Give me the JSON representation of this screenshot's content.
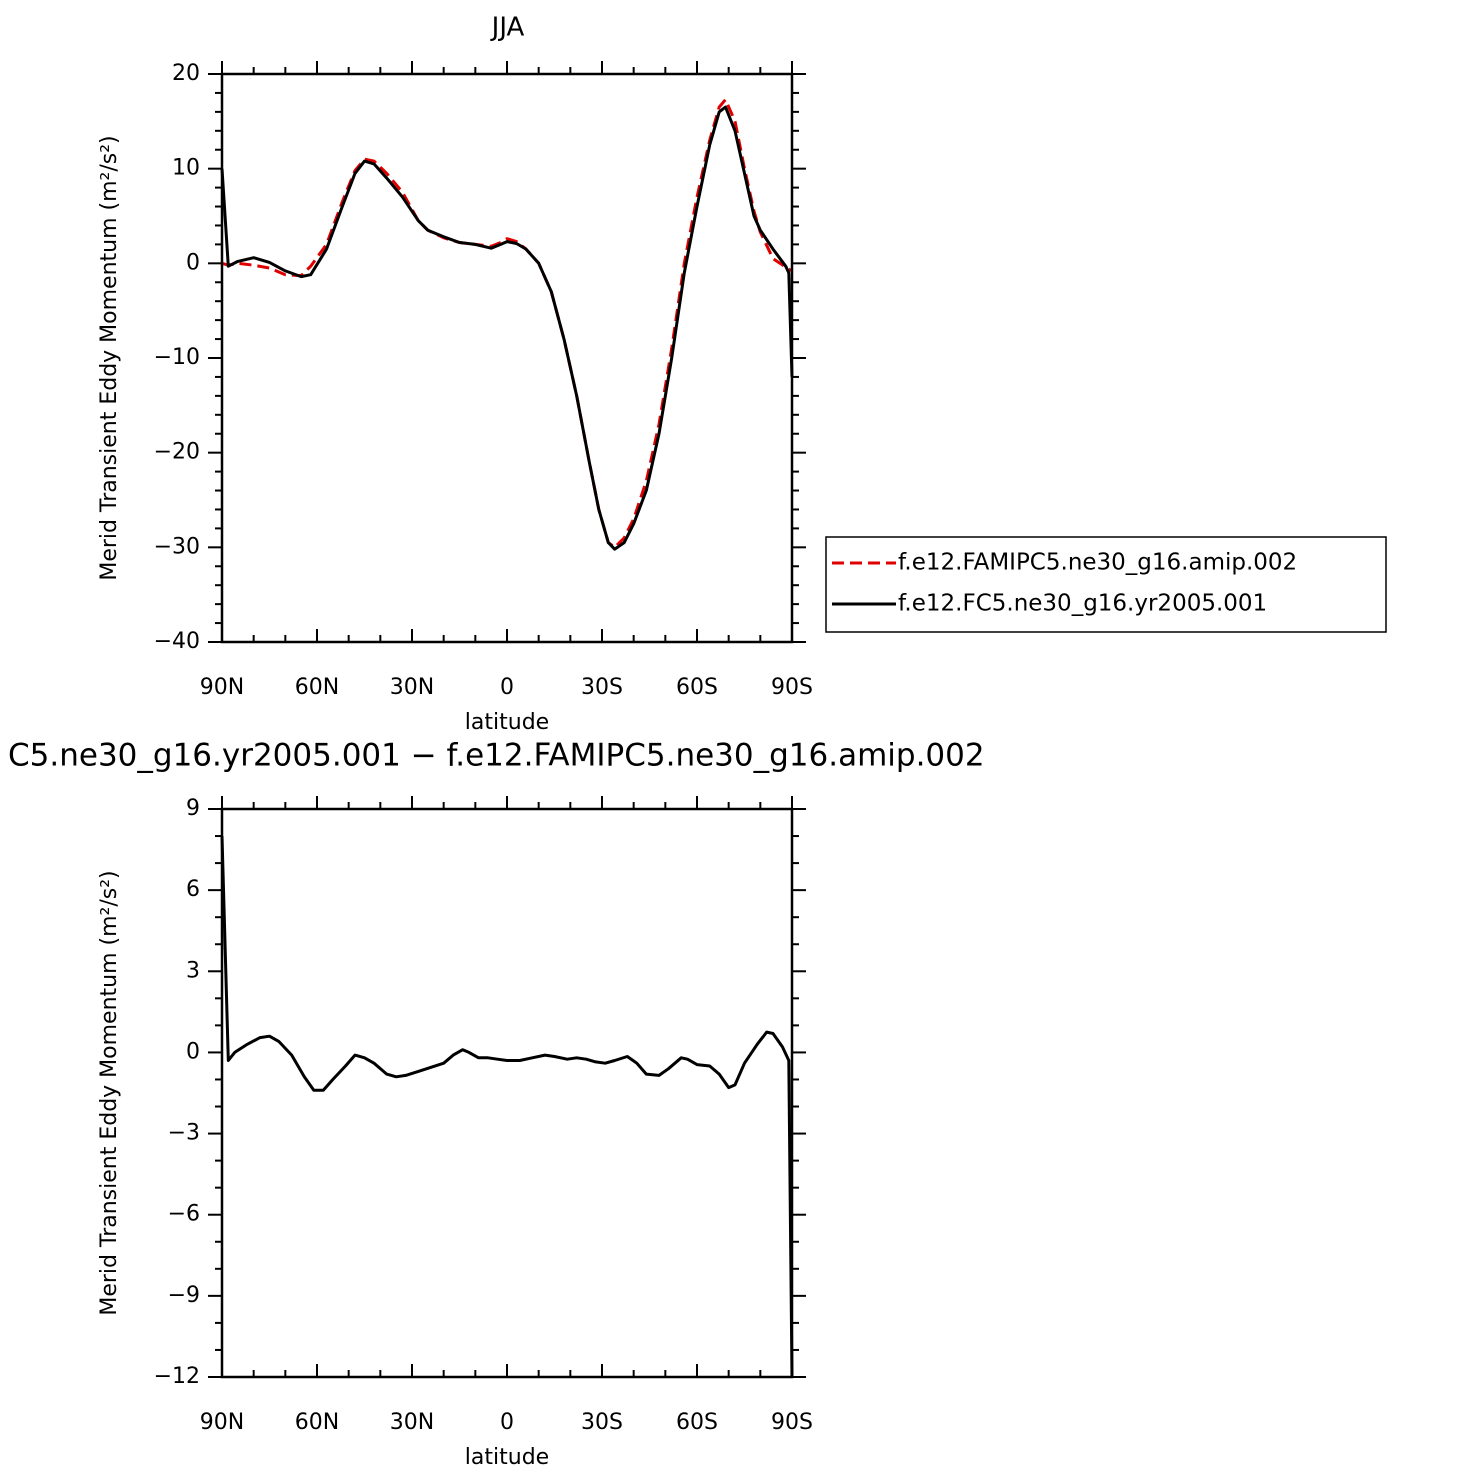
{
  "chart_data": [
    {
      "type": "line",
      "title": "JJA",
      "xlabel": "latitude",
      "ylabel": "Merid Transient Eddy Momentum (m²/s²)",
      "xlim": [
        90,
        -90
      ],
      "xticks": [
        {
          "value": 90,
          "label": "90N"
        },
        {
          "value": 60,
          "label": "60N"
        },
        {
          "value": 30,
          "label": "30N"
        },
        0,
        {
          "value": -30,
          "label": "30S"
        },
        {
          "value": -60,
          "label": "60S"
        },
        {
          "value": -90,
          "label": "90S"
        }
      ],
      "ylim": [
        -40,
        20
      ],
      "yticks": [
        {
          "value": -40,
          "label": "−40"
        },
        {
          "value": -30,
          "label": "−30"
        },
        {
          "value": -20,
          "label": "−20"
        },
        {
          "value": -10,
          "label": "−10"
        },
        0,
        10,
        20
      ],
      "legend": "right",
      "x": [
        90,
        88,
        85,
        80,
        75,
        70,
        65,
        62,
        57,
        52,
        48,
        45,
        42,
        38,
        33,
        28,
        25,
        20,
        15,
        10,
        5,
        2,
        0,
        -3,
        -6,
        -10,
        -14,
        -18,
        -22,
        -26,
        -29,
        -32,
        -34,
        -37,
        -40,
        -44,
        -48,
        -52,
        -56,
        -60,
        -64,
        -67,
        -69,
        -72,
        -75,
        -78,
        -80,
        -84,
        -88,
        -89,
        -90
      ],
      "series": [
        {
          "name": "f.e12.FAMIPC5.ne30_g16.amip.002",
          "color": "#e00000",
          "dash": true,
          "values": [
            0,
            -0.2,
            0,
            -0.2,
            -0.5,
            -1.2,
            -1.3,
            -0.3,
            2,
            6.5,
            9.8,
            11,
            10.8,
            9.5,
            7.5,
            4.5,
            3.5,
            2.7,
            2.2,
            2,
            1.8,
            2.2,
            2.6,
            2.3,
            1.5,
            0,
            -3,
            -8,
            -14,
            -21,
            -26,
            -29.5,
            -30,
            -29,
            -27,
            -23,
            -17,
            -9,
            0,
            7,
            13,
            16.5,
            17.3,
            15,
            10,
            5.5,
            3.3,
            0.5,
            -0.4,
            -0.6,
            -0.8
          ]
        },
        {
          "name": "f.e12.FC5.ne30_g16.yr2005.001",
          "color": "#000000",
          "dash": false,
          "values": [
            10,
            -0.3,
            0.2,
            0.6,
            0.1,
            -0.8,
            -1.4,
            -1.2,
            1.5,
            6,
            9.5,
            10.8,
            10.5,
            9,
            7,
            4.5,
            3.5,
            2.8,
            2.2,
            2,
            1.6,
            2,
            2.3,
            2.1,
            1.5,
            0,
            -3,
            -8,
            -14,
            -21,
            -26,
            -29.5,
            -30.2,
            -29.5,
            -27.5,
            -24,
            -18,
            -10,
            -1,
            6,
            12.5,
            16,
            16.5,
            14,
            9.5,
            5,
            3.5,
            1.5,
            -0.3,
            -1,
            -12
          ]
        }
      ]
    },
    {
      "type": "line",
      "title": "C5.ne30_g16.yr2005.001 − f.e12.FAMIPC5.ne30_g16.amip.002",
      "xlabel": "latitude",
      "ylabel": "Merid Transient Eddy Momentum (m²/s²)",
      "xlim": [
        90,
        -90
      ],
      "xticks": [
        {
          "value": 90,
          "label": "90N"
        },
        {
          "value": 60,
          "label": "60N"
        },
        {
          "value": 30,
          "label": "30N"
        },
        0,
        {
          "value": -30,
          "label": "30S"
        },
        {
          "value": -60,
          "label": "60S"
        },
        {
          "value": -90,
          "label": "90S"
        }
      ],
      "ylim": [
        -12,
        9
      ],
      "yticks": [
        {
          "value": -12,
          "label": "−12"
        },
        {
          "value": -9,
          "label": "−9"
        },
        {
          "value": -6,
          "label": "−6"
        },
        {
          "value": -3,
          "label": "−3"
        },
        0,
        3,
        6,
        9
      ],
      "x": [
        90,
        88,
        86,
        82,
        78,
        75,
        72,
        68,
        64,
        61,
        58,
        55,
        51,
        48,
        45,
        42,
        38,
        35,
        32,
        28,
        24,
        20,
        17,
        14,
        12,
        9,
        6,
        3,
        0,
        -4,
        -8,
        -12,
        -15,
        -19,
        -22,
        -25,
        -28,
        -31,
        -34,
        -38,
        -41,
        -44,
        -48,
        -51,
        -55,
        -57,
        -60,
        -64,
        -67,
        -70,
        -72,
        -75,
        -79,
        -82,
        -84,
        -87,
        -89,
        -90
      ],
      "series": [
        {
          "color": "#000000",
          "dash": false,
          "values": [
            8,
            -0.3,
            0,
            0.3,
            0.55,
            0.6,
            0.4,
            -0.1,
            -0.9,
            -1.4,
            -1.4,
            -1,
            -0.5,
            -0.1,
            -0.2,
            -0.4,
            -0.8,
            -0.9,
            -0.85,
            -0.7,
            -0.55,
            -0.4,
            -0.1,
            0.1,
            0,
            -0.2,
            -0.2,
            -0.25,
            -0.3,
            -0.3,
            -0.2,
            -0.1,
            -0.15,
            -0.25,
            -0.2,
            -0.25,
            -0.35,
            -0.4,
            -0.3,
            -0.15,
            -0.4,
            -0.8,
            -0.85,
            -0.6,
            -0.2,
            -0.25,
            -0.45,
            -0.5,
            -0.8,
            -1.3,
            -1.2,
            -0.4,
            0.3,
            0.75,
            0.7,
            0.2,
            -0.3,
            -12
          ]
        }
      ]
    }
  ]
}
